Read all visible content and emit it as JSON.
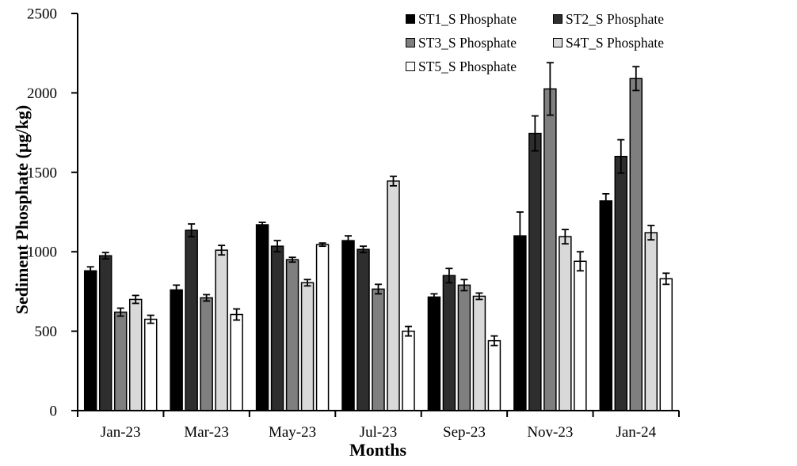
{
  "chart_data": {
    "type": "bar",
    "title": "",
    "xlabel": "Months",
    "ylabel": "Sediment Phosphate (µg/kg)",
    "ylim": [
      0,
      2500
    ],
    "yticks": [
      0,
      500,
      1000,
      1500,
      2000,
      2500
    ],
    "grid": false,
    "legend_position": "top-right-two-columns",
    "categories": [
      "Jan-23",
      "Mar-23",
      "May-23",
      "Jul-23",
      "Sep-23",
      "Nov-23",
      "Jan-24"
    ],
    "series": [
      {
        "name": "ST1_S Phosphate",
        "color": "#000000",
        "values": [
          880,
          760,
          1170,
          1070,
          715,
          1100,
          1320
        ],
        "errors": [
          25,
          30,
          15,
          30,
          20,
          150,
          45
        ]
      },
      {
        "name": "ST2_S Phosphate",
        "color": "#2e2e2e",
        "values": [
          975,
          1135,
          1035,
          1015,
          850,
          1745,
          1600
        ],
        "errors": [
          20,
          40,
          35,
          20,
          45,
          110,
          105
        ]
      },
      {
        "name": "ST3_S Phosphate",
        "color": "#7f7f7f",
        "values": [
          620,
          710,
          950,
          765,
          790,
          2025,
          2090
        ],
        "errors": [
          25,
          20,
          15,
          30,
          35,
          165,
          75
        ]
      },
      {
        "name": "S4T_S Phosphate",
        "color": "#d9d9d9",
        "values": [
          700,
          1010,
          805,
          1445,
          720,
          1095,
          1120
        ],
        "errors": [
          25,
          30,
          20,
          30,
          20,
          45,
          45
        ]
      },
      {
        "name": "ST5_S Phosphate",
        "color": "#ffffff",
        "values": [
          575,
          605,
          1045,
          500,
          440,
          940,
          830
        ],
        "errors": [
          25,
          35,
          10,
          30,
          30,
          60,
          35
        ]
      }
    ]
  }
}
